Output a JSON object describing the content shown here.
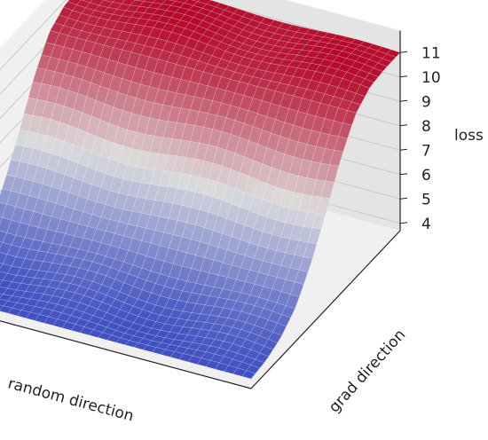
{
  "chart_data": {
    "type": "surface",
    "title": "",
    "xlabel": "random direction",
    "ylabel": "grad direction",
    "zlabel": "loss",
    "zlim": [
      3.7,
      11.6
    ],
    "z_ticks": [
      "4",
      "5",
      "6",
      "7",
      "8",
      "9",
      "10",
      "11"
    ],
    "grad_profile": {
      "t": [
        0.0,
        0.1,
        0.2,
        0.3,
        0.4,
        0.5,
        0.6,
        0.7,
        0.8,
        0.9,
        1.0
      ],
      "loss": [
        11.0,
        11.0,
        10.9,
        10.4,
        9.2,
        7.6,
        6.2,
        5.1,
        4.5,
        4.2,
        4.1
      ]
    },
    "bump": {
      "loss_peak": 7.6,
      "random_position": 0.6,
      "grad_position": 0.75
    },
    "colormap": "coolwarm",
    "grid": true
  },
  "colors": {
    "pane": "#f0f0f0",
    "pane_dark": "#e4e4e4",
    "grid": "#c8c8c8",
    "axis": "#222222",
    "low": "#3b4cc0",
    "mid": "#dddddd",
    "high": "#b40426"
  }
}
